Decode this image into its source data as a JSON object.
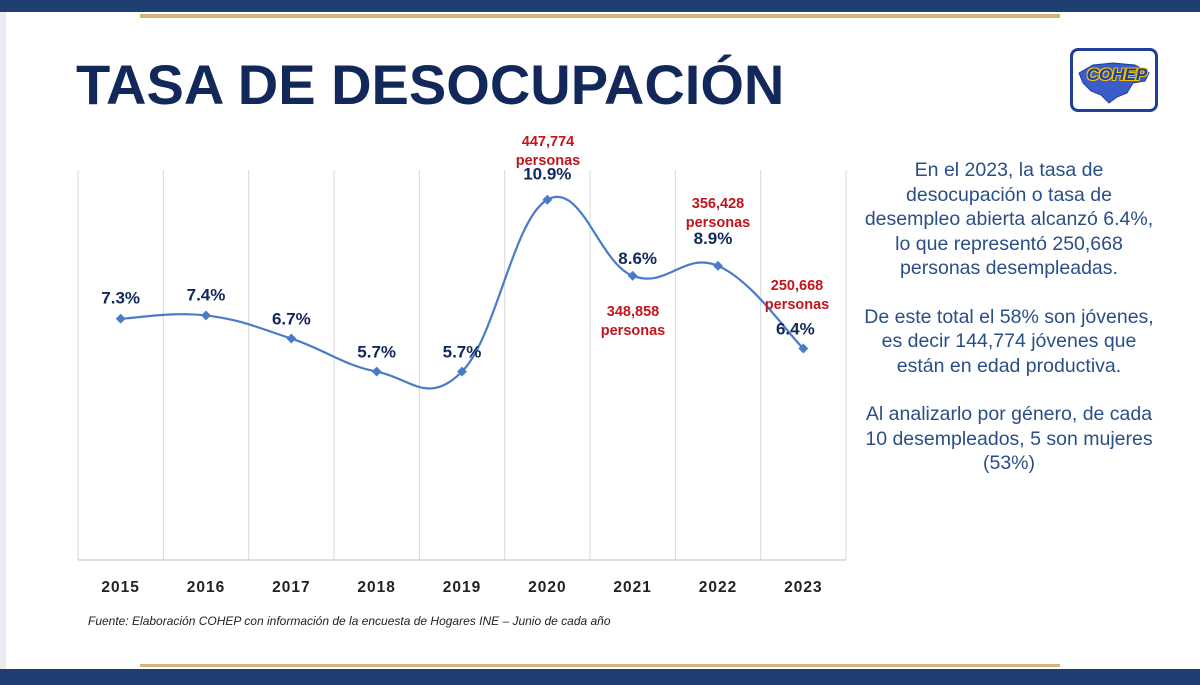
{
  "title": "TASA DE DESOCUPACIÓN",
  "logo": {
    "text": "COHEP",
    "icon": "honduras-map-logo-icon"
  },
  "colors": {
    "navy": "#13285a",
    "line": "#4a7bc8",
    "annotation_red": "#c0161c",
    "side_text": "#2a4f86",
    "bar": "#1f3f73",
    "gold": "#d4b47a"
  },
  "chart_data": {
    "type": "line",
    "categories": [
      "2015",
      "2016",
      "2017",
      "2018",
      "2019",
      "2020",
      "2021",
      "2022",
      "2023"
    ],
    "values": [
      7.3,
      7.4,
      6.7,
      5.7,
      5.7,
      10.9,
      8.6,
      8.9,
      6.4
    ],
    "value_labels": [
      "7.3%",
      "7.4%",
      "6.7%",
      "5.7%",
      "5.7%",
      "10.9%",
      "8.6%",
      "8.9%",
      "6.4%"
    ],
    "ylim": [
      0,
      11.8
    ],
    "grid": "vertical",
    "legend": "none",
    "annotations": [
      {
        "category": "2020",
        "value": "447,774",
        "unit": "personas"
      },
      {
        "category": "2021",
        "value": "348,858",
        "unit": "personas"
      },
      {
        "category": "2022",
        "value": "356,428",
        "unit": "personas"
      },
      {
        "category": "2023",
        "value": "250,668",
        "unit": "personas"
      }
    ]
  },
  "side_text": {
    "p1": "En el 2023, la tasa de desocupación o tasa de desempleo abierta alcanzó 6.4%, lo que representó 250,668 personas desempleadas.",
    "p2": "De este total el 58% son jóvenes, es decir 144,774 jóvenes que están en edad productiva.",
    "p3": "Al analizarlo por género, de cada 10 desempleados, 5 son mujeres (53%)"
  },
  "source": "Fuente: Elaboración COHEP con información de la encuesta de Hogares INE – Junio de cada año"
}
